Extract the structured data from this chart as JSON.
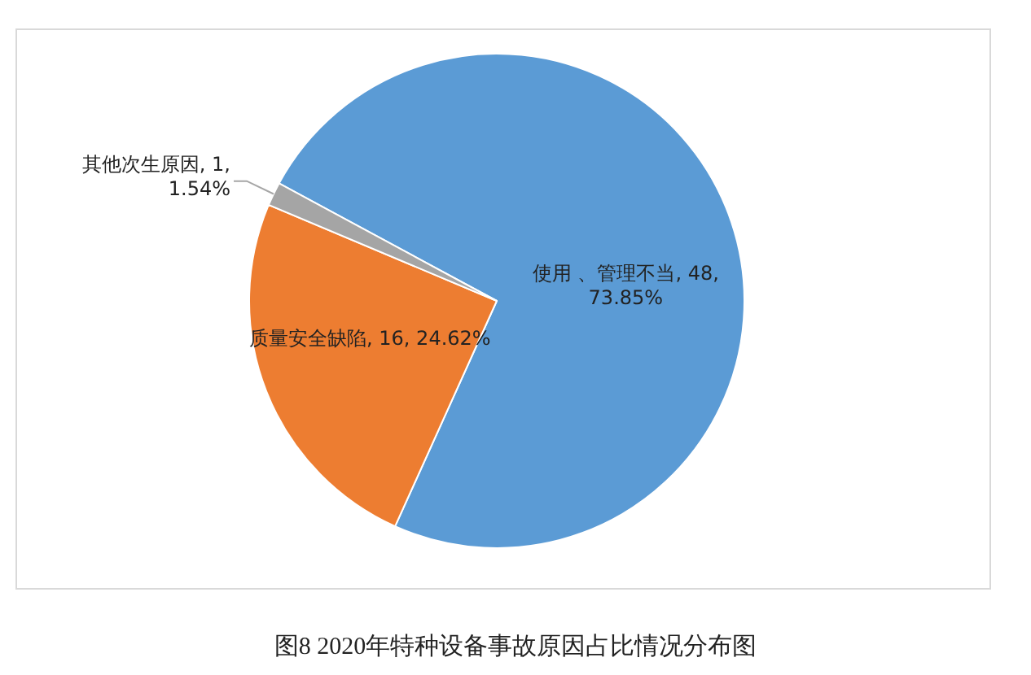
{
  "chart_data": {
    "type": "pie",
    "title": "图8 2020年特种设备事故原因占比情况分布图",
    "categories": [
      "使用 、管理不当",
      "质量安全缺陷",
      "其他次生原因"
    ],
    "values": [
      48,
      16,
      1
    ],
    "value_labels": [
      "48, 73.85%",
      "16, 24.62%",
      "1, 1.54%"
    ],
    "colors": [
      "#5b9bd5",
      "#ed7d31",
      "#a5a5a5"
    ]
  }
}
